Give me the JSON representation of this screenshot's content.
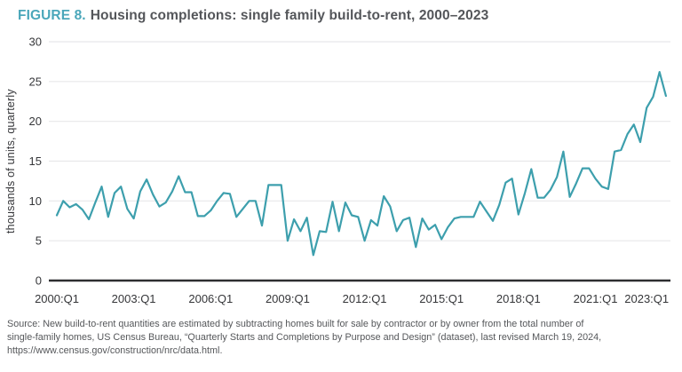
{
  "title": {
    "prefix": "FIGURE 8.",
    "text": "Housing completions: single family build-to-rent, 2000–2023"
  },
  "source": {
    "lines": [
      "Source: New build-to-rent quantities are estimated by subtracting homes built for sale by contractor or by owner from the total number of",
      "single-family homes, US Census Bureau, “Quarterly Starts and Completions by Purpose and Design” (dataset), last revised March 19, 2024,",
      "https://www.census.gov/construction/nrc/data.html."
    ]
  },
  "colors": {
    "accent_teal": "#4BA7BA",
    "line": "#3D9FAD",
    "title_text": "#54565A",
    "axis_text": "#353639",
    "gridline": "#E8E8EA",
    "zero_line": "#2D2E30",
    "source_text": "#55575A"
  },
  "chart_data": {
    "type": "line",
    "title": "FIGURE 8. Housing completions: single family build-to-rent, 2000–2023",
    "xlabel": "",
    "ylabel": "thousands of units, quarterly",
    "ylim": [
      0,
      30
    ],
    "yticks": [
      0,
      5,
      10,
      15,
      20,
      25,
      30
    ],
    "grid": "horizontal",
    "legend_position": "none",
    "xtick_labels": [
      "2000:Q1",
      "2003:Q1",
      "2006:Q1",
      "2009:Q1",
      "2012:Q1",
      "2015:Q1",
      "2018:Q1",
      "2021:Q1",
      "2023:Q1"
    ],
    "xtick_quarter_index": [
      0,
      12,
      24,
      36,
      48,
      60,
      72,
      84,
      92
    ],
    "x": [
      "2000:Q1",
      "2000:Q2",
      "2000:Q3",
      "2000:Q4",
      "2001:Q1",
      "2001:Q2",
      "2001:Q3",
      "2001:Q4",
      "2002:Q1",
      "2002:Q2",
      "2002:Q3",
      "2002:Q4",
      "2003:Q1",
      "2003:Q2",
      "2003:Q3",
      "2003:Q4",
      "2004:Q1",
      "2004:Q2",
      "2004:Q3",
      "2004:Q4",
      "2005:Q1",
      "2005:Q2",
      "2005:Q3",
      "2005:Q4",
      "2006:Q1",
      "2006:Q2",
      "2006:Q3",
      "2006:Q4",
      "2007:Q1",
      "2007:Q2",
      "2007:Q3",
      "2007:Q4",
      "2008:Q1",
      "2008:Q2",
      "2008:Q3",
      "2008:Q4",
      "2009:Q1",
      "2009:Q2",
      "2009:Q3",
      "2009:Q4",
      "2010:Q1",
      "2010:Q2",
      "2010:Q3",
      "2010:Q4",
      "2011:Q1",
      "2011:Q2",
      "2011:Q3",
      "2011:Q4",
      "2012:Q1",
      "2012:Q2",
      "2012:Q3",
      "2012:Q4",
      "2013:Q1",
      "2013:Q2",
      "2013:Q3",
      "2013:Q4",
      "2014:Q1",
      "2014:Q2",
      "2014:Q3",
      "2014:Q4",
      "2015:Q1",
      "2015:Q2",
      "2015:Q3",
      "2015:Q4",
      "2016:Q1",
      "2016:Q2",
      "2016:Q3",
      "2016:Q4",
      "2017:Q1",
      "2017:Q2",
      "2017:Q3",
      "2017:Q4",
      "2018:Q1",
      "2018:Q2",
      "2018:Q3",
      "2018:Q4",
      "2019:Q1",
      "2019:Q2",
      "2019:Q3",
      "2019:Q4",
      "2020:Q1",
      "2020:Q2",
      "2020:Q3",
      "2020:Q4",
      "2021:Q1",
      "2021:Q2",
      "2021:Q3",
      "2021:Q4",
      "2022:Q1",
      "2022:Q2",
      "2022:Q3",
      "2022:Q4",
      "2023:Q1",
      "2023:Q2",
      "2023:Q3",
      "2023:Q4"
    ],
    "values": [
      8.2,
      10.0,
      9.2,
      9.6,
      8.9,
      7.7,
      9.8,
      11.8,
      8.0,
      11.0,
      11.8,
      9.0,
      7.8,
      11.2,
      12.7,
      10.8,
      9.3,
      9.8,
      11.2,
      13.1,
      11.1,
      11.1,
      8.1,
      8.1,
      8.8,
      10.0,
      11.0,
      10.9,
      8.0,
      9.0,
      10.0,
      10.0,
      6.9,
      12.0,
      12.0,
      12.0,
      5.0,
      7.7,
      6.2,
      7.9,
      3.2,
      6.2,
      6.1,
      9.9,
      6.2,
      9.8,
      8.2,
      8.0,
      5.0,
      7.6,
      6.9,
      10.6,
      9.3,
      6.2,
      7.6,
      7.9,
      4.2,
      7.8,
      6.4,
      7.0,
      5.2,
      6.7,
      7.8,
      8.0,
      8.0,
      8.0,
      9.9,
      8.7,
      7.5,
      9.5,
      12.3,
      12.8,
      8.3,
      11.0,
      14.0,
      10.4,
      10.4,
      11.4,
      13.0,
      16.2,
      10.5,
      12.2,
      14.1,
      14.1,
      12.8,
      11.8,
      11.5,
      16.2,
      16.4,
      18.4,
      19.6,
      17.4,
      21.7,
      23.1,
      26.2,
      23.2
    ]
  }
}
